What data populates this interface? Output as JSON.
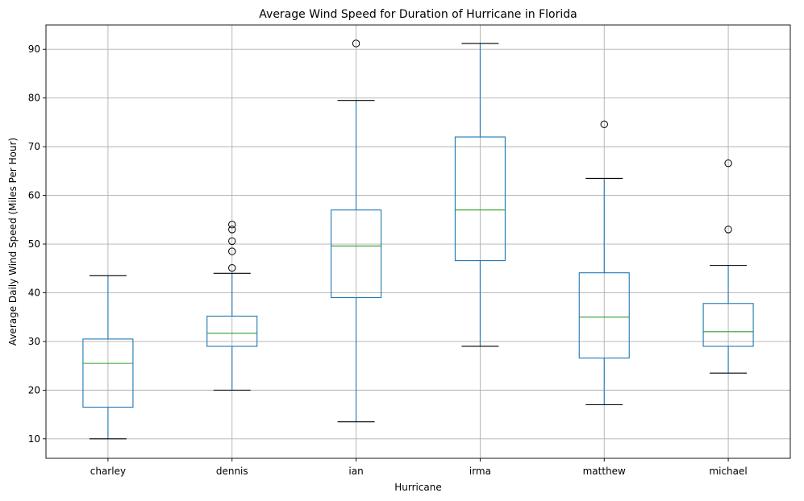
{
  "chart_data": {
    "type": "box",
    "title": "Average Wind Speed for Duration of Hurricane in Florida",
    "xlabel": "Hurricane",
    "ylabel": "Average Daily Wind Speed (Miles Per Hour)",
    "ylim": [
      6,
      95
    ],
    "yticks": [
      10,
      20,
      30,
      40,
      50,
      60,
      70,
      80,
      90
    ],
    "grid": true,
    "colors": {
      "box": "#1f77b4",
      "median": "#2ca02c",
      "cap": "#000000",
      "flier": "#000000"
    },
    "categories": [
      "charley",
      "dennis",
      "ian",
      "irma",
      "matthew",
      "michael"
    ],
    "boxes": [
      {
        "name": "charley",
        "whislo": 10.0,
        "q1": 16.5,
        "med": 25.5,
        "q3": 30.5,
        "whishi": 43.5,
        "fliers": []
      },
      {
        "name": "dennis",
        "whislo": 20.0,
        "q1": 29.0,
        "med": 31.7,
        "q3": 35.2,
        "whishi": 44.0,
        "fliers": [
          45.1,
          48.5,
          50.6,
          53.0,
          54.0
        ]
      },
      {
        "name": "ian",
        "whislo": 13.5,
        "q1": 39.0,
        "med": 49.6,
        "q3": 57.0,
        "whishi": 79.5,
        "fliers": [
          91.2
        ]
      },
      {
        "name": "irma",
        "whislo": 29.0,
        "q1": 46.6,
        "med": 57.0,
        "q3": 72.0,
        "whishi": 91.2,
        "fliers": []
      },
      {
        "name": "matthew",
        "whislo": 17.0,
        "q1": 26.6,
        "med": 35.0,
        "q3": 44.1,
        "whishi": 63.5,
        "fliers": [
          74.6
        ]
      },
      {
        "name": "michael",
        "whislo": 23.5,
        "q1": 29.0,
        "med": 32.0,
        "q3": 37.8,
        "whishi": 45.6,
        "fliers": [
          53.0,
          66.6
        ]
      }
    ]
  }
}
